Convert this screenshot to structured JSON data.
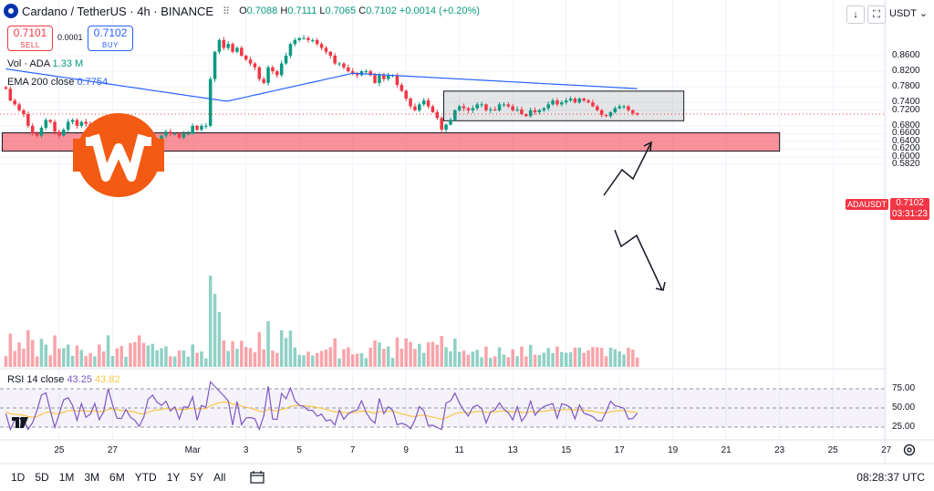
{
  "header": {
    "title": "Cardano / TetherUS · 4h · BINANCE",
    "ohlc_o_label": "O",
    "ohlc_o": "0.7088",
    "ohlc_h_label": "H",
    "ohlc_h": "0.7111",
    "ohlc_l_label": "L",
    "ohlc_l": "0.7065",
    "ohlc_c_label": "C",
    "ohlc_c": "0.7102",
    "change": "+0.0014 (+0.20%)",
    "sell_price": "0.7101",
    "sell_label": "SELL",
    "buy_price": "0.7102",
    "buy_label": "BUY",
    "spread": "0.0001",
    "currency": "USDT"
  },
  "indicators": {
    "vol_label": "Vol · ADA",
    "vol_value": "1.33 M",
    "ema_label": "EMA 200 close",
    "ema_value": "0.7754",
    "rsi_label": "RSI 14 close",
    "rsi_value": "43.25",
    "rsi_ma_value": "43.82"
  },
  "price_tag": {
    "symbol": "ADAUSDT",
    "price": "0.7102",
    "countdown": "03:31:23"
  },
  "colors": {
    "up": "#089981",
    "down": "#f23645",
    "ema": "#2962ff",
    "rsi": "#7e57c2",
    "rsi_ma": "#f7c948",
    "zone": "#f23645",
    "logo": "#f35a14"
  },
  "bottom": {
    "ranges": [
      "1D",
      "5D",
      "1M",
      "3M",
      "6M",
      "YTD",
      "1Y",
      "5Y",
      "All"
    ],
    "clock": "08:28:37 UTC"
  },
  "icons": [
    "tradingview-logo-icon",
    "calendar-icon",
    "settings-icon",
    "arrow-down-icon",
    "fullscreen-icon",
    "logo-watermark"
  ],
  "chart_data": {
    "type": "candlestick",
    "symbol": "ADAUSDT",
    "timeframe": "4h",
    "ylim": [
      0.575,
      0.9
    ],
    "y_ticks": [
      "0.8600",
      "0.8200",
      "0.7800",
      "0.7400",
      "0.7200",
      "0.6800",
      "0.6600",
      "0.6400",
      "0.6200",
      "0.6000",
      "0.5820"
    ],
    "x_ticks": [
      "25",
      "27",
      "Mar",
      "3",
      "5",
      "7",
      "9",
      "11",
      "13",
      "15",
      "17",
      "19",
      "21",
      "23",
      "25",
      "27"
    ],
    "x_tick_dates": [
      "Feb 25",
      "Feb 27",
      "Mar 1",
      "Mar 3",
      "Mar 5",
      "Mar 7",
      "Mar 9",
      "Mar 11",
      "Mar 13",
      "Mar 15",
      "Mar 17",
      "Mar 19",
      "Mar 21",
      "Mar 23",
      "Mar 25",
      "Mar 27"
    ],
    "candles_start": "Feb 23 00:00",
    "candle_hours": 4,
    "closes": [
      0.775,
      0.745,
      0.735,
      0.72,
      0.71,
      0.68,
      0.66,
      0.655,
      0.675,
      0.695,
      0.69,
      0.665,
      0.655,
      0.67,
      0.69,
      0.695,
      0.68,
      0.69,
      0.685,
      0.675,
      0.68,
      0.665,
      0.66,
      0.69,
      0.695,
      0.68,
      0.67,
      0.675,
      0.66,
      0.64,
      0.615,
      0.6,
      0.615,
      0.635,
      0.645,
      0.655,
      0.665,
      0.66,
      0.66,
      0.65,
      0.66,
      0.66,
      0.68,
      0.67,
      0.68,
      0.68,
      0.8,
      0.87,
      0.9,
      0.88,
      0.89,
      0.87,
      0.88,
      0.86,
      0.85,
      0.84,
      0.83,
      0.8,
      0.79,
      0.83,
      0.82,
      0.81,
      0.84,
      0.86,
      0.89,
      0.9,
      0.905,
      0.905,
      0.9,
      0.9,
      0.89,
      0.88,
      0.87,
      0.86,
      0.84,
      0.84,
      0.83,
      0.82,
      0.815,
      0.81,
      0.82,
      0.82,
      0.81,
      0.79,
      0.81,
      0.8,
      0.81,
      0.81,
      0.785,
      0.77,
      0.75,
      0.73,
      0.72,
      0.735,
      0.745,
      0.73,
      0.715,
      0.7,
      0.67,
      0.683,
      0.695,
      0.72,
      0.73,
      0.725,
      0.72,
      0.725,
      0.735,
      0.735,
      0.72,
      0.722,
      0.72,
      0.735,
      0.735,
      0.73,
      0.72,
      0.722,
      0.71,
      0.705,
      0.72,
      0.715,
      0.72,
      0.725,
      0.735,
      0.745,
      0.735,
      0.74,
      0.745,
      0.75,
      0.74,
      0.75,
      0.745,
      0.74,
      0.73,
      0.72,
      0.708,
      0.705,
      0.715,
      0.725,
      0.73,
      0.73,
      0.72,
      0.712,
      0.7102
    ],
    "volume_unit": "ADA",
    "rsi_levels": [
      25,
      50,
      75
    ],
    "rsi_ticks": [
      "75.00",
      "50.00",
      "25.00"
    ],
    "ema200_last": 0.7754,
    "rsi_last": 43.25,
    "rsi_ma_last": 43.82,
    "demand_zone": {
      "from": "Feb 23",
      "to": "Mar 23",
      "low": 0.615,
      "high": 0.662
    },
    "range_box": {
      "from": "Mar 10",
      "to": "Mar 19",
      "low": 0.693,
      "high": 0.769
    }
  }
}
